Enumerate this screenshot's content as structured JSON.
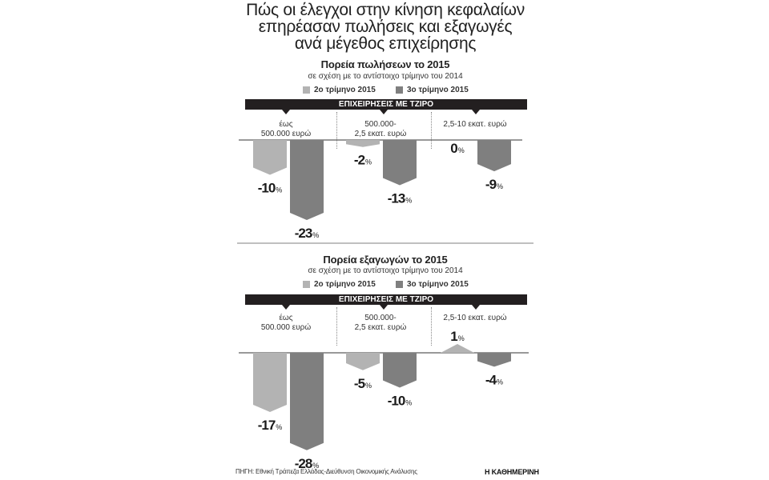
{
  "title_lines": [
    "Πώς οι έλεγχοι στην κίνηση κεφαλαίων",
    "επηρέασαν πωλήσεις και εξαγωγές",
    "ανά μέγεθος επιχείρησης"
  ],
  "header_bar_label": "ΕΠΙΧΕΙΡΗΣΕΙΣ ΜΕ ΤΖΙΡΟ",
  "groups": [
    {
      "line1": "έως",
      "line2": "500.000 ευρώ"
    },
    {
      "line1": "500.000-",
      "line2": "2,5 εκατ. ευρώ"
    },
    {
      "line1": "2,5-10 εκατ. ευρώ",
      "line2": ""
    }
  ],
  "legend": [
    {
      "label": "2ο τρίμηνο 2015",
      "color": "#b3b3b3"
    },
    {
      "label": "3ο τρίμηνο 2015",
      "color": "#7f7f7f"
    }
  ],
  "source": "ΠΗΓΗ: Εθνική Τράπεζα Ελλάδας-Διεύθυνση Οικονομικής Ανάλυσης",
  "brand": "Η ΚΑΘΗΜΕΡΙΝΗ",
  "chart_data": [
    {
      "type": "bar",
      "title": "Πορεία πωλήσεων το 2015",
      "subtitle": "σε σχέση με το αντίστοιχο τρίμηνο του 2014",
      "categories": [
        "έως 500.000 ευρώ",
        "500.000-2,5 εκατ. ευρώ",
        "2,5-10 εκατ. ευρώ"
      ],
      "series": [
        {
          "name": "2ο τρίμηνο 2015",
          "values": [
            -10,
            -2,
            0
          ]
        },
        {
          "name": "3ο τρίμηνο 2015",
          "values": [
            -23,
            -13,
            -9
          ]
        }
      ],
      "unit": "%"
    },
    {
      "type": "bar",
      "title": "Πορεία εξαγωγών το 2015",
      "subtitle": "σε σχέση με το αντίστοιχο τρίμηνο του 2014",
      "categories": [
        "έως 500.000 ευρώ",
        "500.000-2,5 εκατ. ευρώ",
        "2,5-10 εκατ. ευρώ"
      ],
      "series": [
        {
          "name": "2ο τρίμηνο 2015",
          "values": [
            -17,
            -5,
            1
          ]
        },
        {
          "name": "3ο τρίμηνο 2015",
          "values": [
            -28,
            -10,
            -4
          ]
        }
      ],
      "unit": "%"
    }
  ]
}
